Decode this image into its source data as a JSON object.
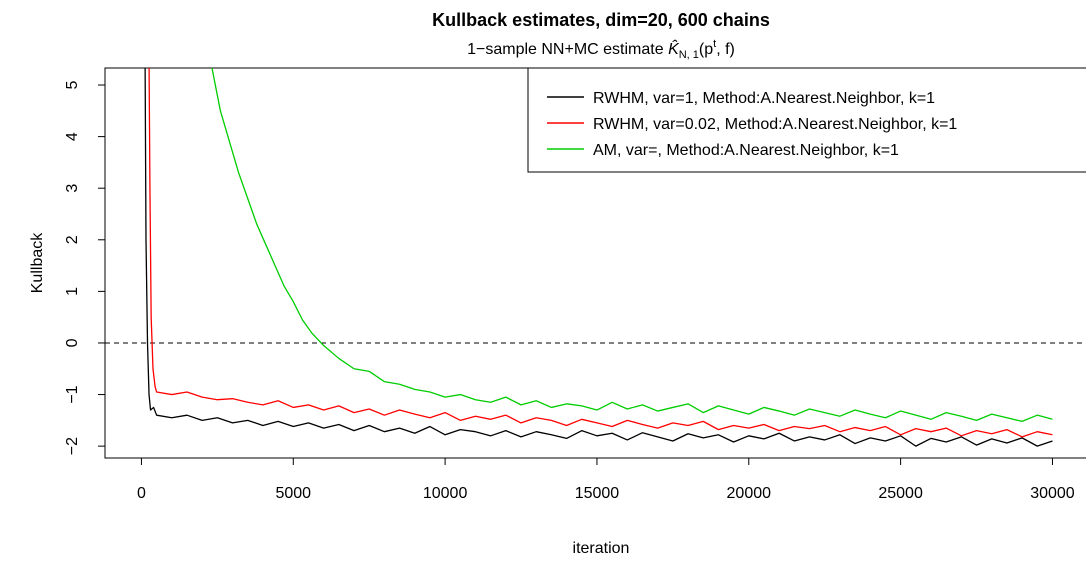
{
  "chart_data": {
    "type": "line",
    "title": "Kullback estimates, dim=20, 600 chains",
    "subtitle": {
      "text": "1−sample NN+MC estimate ",
      "symbol": "K̂",
      "sub": "N, 1",
      "open": "(p",
      "sup": "t",
      "close": ", f)"
    },
    "xlabel": "iteration",
    "ylabel": "Kullback",
    "xlim": [
      -1200,
      31500
    ],
    "ylim": [
      -2.23,
      5.33
    ],
    "xticks": [
      0,
      5000,
      10000,
      15000,
      20000,
      25000,
      30000
    ],
    "yticks": [
      {
        "value": -2,
        "label": "−2"
      },
      {
        "value": -1,
        "label": "−1"
      },
      0,
      1,
      2,
      3,
      4,
      5
    ],
    "reference_line": 0,
    "legend": "top-right",
    "series": [
      {
        "name": "RWHM, var=1, Method:A.Nearest.Neighbor, k=1",
        "color": "#000000",
        "x": [
          120,
          150,
          200,
          250,
          300,
          400,
          500,
          1000,
          1500,
          2000,
          2500,
          3000,
          3500,
          4000,
          4500,
          5000,
          5500,
          6000,
          6500,
          7000,
          7500,
          8000,
          8500,
          9000,
          9500,
          10000,
          10500,
          11000,
          11500,
          12000,
          12500,
          13000,
          13500,
          14000,
          14500,
          15000,
          15500,
          16000,
          16500,
          17000,
          17500,
          18000,
          18500,
          19000,
          19500,
          20000,
          20500,
          21000,
          21500,
          22000,
          22500,
          23000,
          23500,
          24000,
          24500,
          25000,
          25500,
          26000,
          26500,
          27000,
          27500,
          28000,
          28500,
          29000,
          29500,
          30000
        ],
        "values": [
          5.5,
          2.0,
          0.0,
          -1.0,
          -1.3,
          -1.25,
          -1.4,
          -1.45,
          -1.4,
          -1.5,
          -1.45,
          -1.55,
          -1.5,
          -1.6,
          -1.52,
          -1.62,
          -1.55,
          -1.65,
          -1.58,
          -1.7,
          -1.6,
          -1.72,
          -1.65,
          -1.75,
          -1.62,
          -1.78,
          -1.68,
          -1.72,
          -1.8,
          -1.7,
          -1.82,
          -1.72,
          -1.78,
          -1.85,
          -1.7,
          -1.8,
          -1.75,
          -1.88,
          -1.74,
          -1.82,
          -1.9,
          -1.76,
          -1.84,
          -1.78,
          -1.92,
          -1.8,
          -1.86,
          -1.75,
          -1.9,
          -1.82,
          -1.88,
          -1.78,
          -1.95,
          -1.84,
          -1.9,
          -1.8,
          -2.0,
          -1.85,
          -1.92,
          -1.82,
          -1.98,
          -1.86,
          -1.94,
          -1.84,
          -2.0,
          -1.9
        ]
      },
      {
        "name": "RWHM, var=0.02, Method:A.Nearest.Neighbor, k=1",
        "color": "#ff0000",
        "x": [
          250,
          280,
          320,
          380,
          450,
          500,
          1000,
          1500,
          2000,
          2500,
          3000,
          3500,
          4000,
          4500,
          5000,
          5500,
          6000,
          6500,
          7000,
          7500,
          8000,
          8500,
          9000,
          9500,
          10000,
          10500,
          11000,
          11500,
          12000,
          12500,
          13000,
          13500,
          14000,
          14500,
          15000,
          15500,
          16000,
          16500,
          17000,
          17500,
          18000,
          18500,
          19000,
          19500,
          20000,
          20500,
          21000,
          21500,
          22000,
          22500,
          23000,
          23500,
          24000,
          24500,
          25000,
          25500,
          26000,
          26500,
          27000,
          27500,
          28000,
          28500,
          29000,
          29500,
          30000
        ],
        "values": [
          5.5,
          3,
          0.5,
          -0.5,
          -0.85,
          -0.95,
          -1.0,
          -0.95,
          -1.05,
          -1.1,
          -1.08,
          -1.15,
          -1.2,
          -1.12,
          -1.25,
          -1.2,
          -1.3,
          -1.22,
          -1.35,
          -1.28,
          -1.4,
          -1.3,
          -1.38,
          -1.45,
          -1.35,
          -1.5,
          -1.42,
          -1.48,
          -1.4,
          -1.55,
          -1.45,
          -1.5,
          -1.6,
          -1.48,
          -1.55,
          -1.62,
          -1.5,
          -1.58,
          -1.65,
          -1.55,
          -1.6,
          -1.52,
          -1.68,
          -1.6,
          -1.65,
          -1.58,
          -1.7,
          -1.62,
          -1.66,
          -1.6,
          -1.72,
          -1.64,
          -1.7,
          -1.62,
          -1.78,
          -1.66,
          -1.72,
          -1.65,
          -1.8,
          -1.7,
          -1.76,
          -1.68,
          -1.82,
          -1.72,
          -1.78
        ]
      },
      {
        "name": "AM, var=, Method:A.Nearest.Neighbor, k=1",
        "color": "#00cd00",
        "x": [
          2300,
          2600,
          2900,
          3200,
          3500,
          3800,
          4100,
          4400,
          4700,
          5000,
          5300,
          5600,
          6000,
          6500,
          7000,
          7500,
          8000,
          8500,
          9000,
          9500,
          10000,
          10500,
          11000,
          11500,
          12000,
          12500,
          13000,
          13500,
          14000,
          14500,
          15000,
          15500,
          16000,
          16500,
          17000,
          17500,
          18000,
          18500,
          19000,
          19500,
          20000,
          20500,
          21000,
          21500,
          22000,
          22500,
          23000,
          23500,
          24000,
          24500,
          25000,
          25500,
          26000,
          26500,
          27000,
          27500,
          28000,
          28500,
          29000,
          29500,
          30000
        ],
        "values": [
          5.4,
          4.5,
          3.9,
          3.3,
          2.8,
          2.3,
          1.9,
          1.5,
          1.1,
          0.8,
          0.45,
          0.2,
          -0.05,
          -0.3,
          -0.5,
          -0.55,
          -0.75,
          -0.8,
          -0.9,
          -0.95,
          -1.05,
          -1.0,
          -1.1,
          -1.15,
          -1.05,
          -1.2,
          -1.12,
          -1.25,
          -1.18,
          -1.22,
          -1.3,
          -1.15,
          -1.28,
          -1.2,
          -1.32,
          -1.25,
          -1.18,
          -1.35,
          -1.22,
          -1.3,
          -1.38,
          -1.25,
          -1.32,
          -1.4,
          -1.28,
          -1.35,
          -1.42,
          -1.3,
          -1.38,
          -1.45,
          -1.32,
          -1.4,
          -1.48,
          -1.35,
          -1.42,
          -1.5,
          -1.38,
          -1.45,
          -1.52,
          -1.4,
          -1.48
        ]
      }
    ]
  }
}
